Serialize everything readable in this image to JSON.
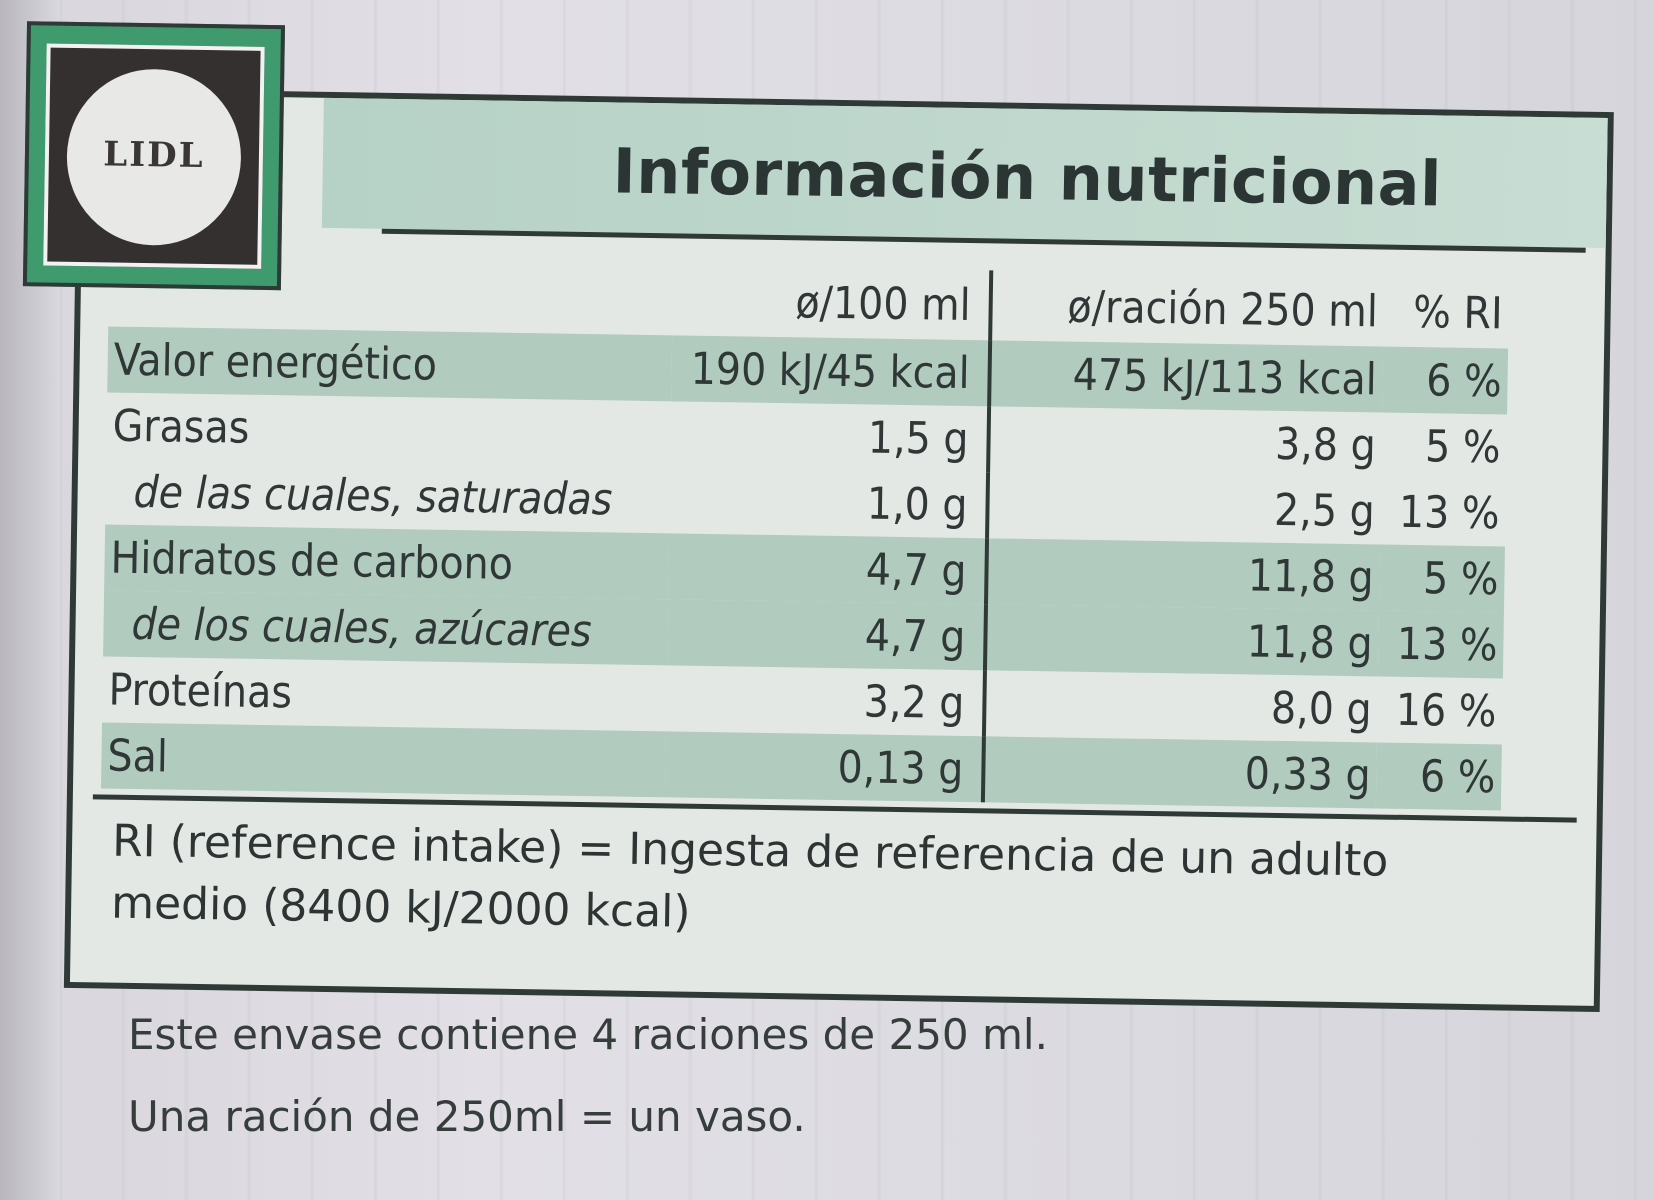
{
  "brand": "LIDL",
  "title": "Información nutricional",
  "columns": {
    "per100": "ø/100 ml",
    "per_serving": "ø/ración 250 ml",
    "ri": "% RI"
  },
  "rows": [
    {
      "name": "Valor energético",
      "per100": "190 kJ/45 kcal",
      "per_serving": "475 kJ/113 kcal",
      "ri": "6 %"
    },
    {
      "name": "Grasas",
      "per100": "1,5 g",
      "per_serving": "3,8 g",
      "ri": "5 %"
    },
    {
      "name": "de las cuales, saturadas",
      "per100": "1,0 g",
      "per_serving": "2,5 g",
      "ri": "13 %"
    },
    {
      "name": "Hidratos de carbono",
      "per100": "4,7 g",
      "per_serving": "11,8 g",
      "ri": "5 %"
    },
    {
      "name": "de los cuales, azúcares",
      "per100": "4,7 g",
      "per_serving": "11,8 g",
      "ri": "13 %"
    },
    {
      "name": "Proteínas",
      "per100": "3,2 g",
      "per_serving": "8,0 g",
      "ri": "16 %"
    },
    {
      "name": "Sal",
      "per100": "0,13 g",
      "per_serving": "0,33 g",
      "ri": "6 %"
    }
  ],
  "ri_note": "RI (reference intake) = Ingesta de referencia de un adulto medio (8400 kJ/2000 kcal)",
  "servings_note": "Este envase contiene 4 raciones de 250 ml.",
  "serving_note": "Una ración de 250ml = un vaso.",
  "colors": {
    "band_green": "#b1cbbf",
    "logo_green": "#3f9a6e",
    "border": "#2f3a36"
  }
}
